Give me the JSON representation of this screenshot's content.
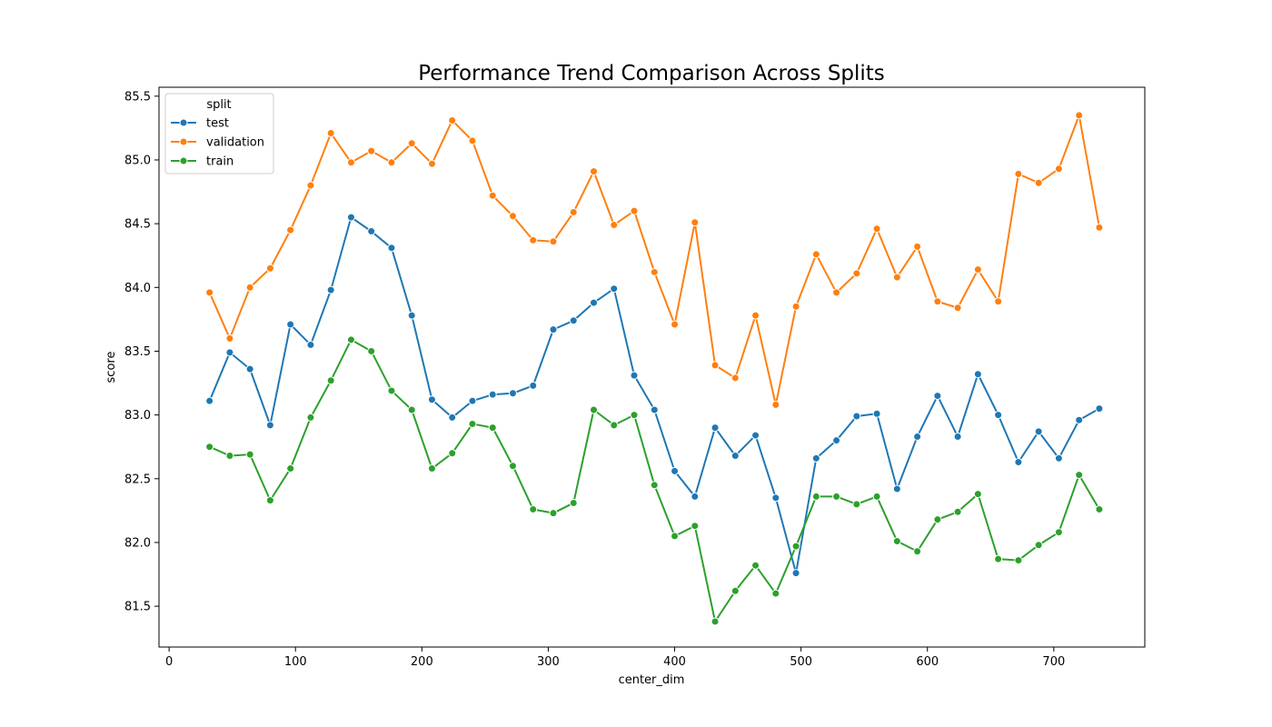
{
  "chart_data": {
    "type": "line",
    "title": "Performance Trend Comparison Across Splits",
    "xlabel": "center_dim",
    "ylabel": "score",
    "xlim": [
      -8,
      772
    ],
    "ylim": [
      81.18,
      85.57
    ],
    "xticks": [
      0,
      100,
      200,
      300,
      400,
      500,
      600,
      700
    ],
    "yticks": [
      81.5,
      82.0,
      82.5,
      83.0,
      83.5,
      84.0,
      84.5,
      85.0,
      85.5
    ],
    "grid": false,
    "legend_title": "split",
    "legend_position": "top-left",
    "x": [
      32,
      48,
      64,
      80,
      96,
      112,
      128,
      144,
      160,
      176,
      192,
      208,
      224,
      240,
      256,
      272,
      288,
      304,
      320,
      336,
      352,
      368,
      384,
      400,
      416,
      432,
      448,
      464,
      480,
      496,
      512,
      528,
      544,
      560,
      576,
      592,
      608,
      624,
      640,
      656,
      672,
      688,
      704,
      720,
      736
    ],
    "series": [
      {
        "name": "test",
        "color": "#1f77b4",
        "values": [
          83.11,
          83.49,
          83.36,
          82.92,
          83.71,
          83.55,
          83.98,
          84.55,
          84.44,
          84.31,
          83.78,
          83.12,
          82.98,
          83.11,
          83.16,
          83.17,
          83.23,
          83.67,
          83.74,
          83.88,
          83.99,
          83.31,
          83.04,
          82.56,
          82.36,
          82.9,
          82.68,
          82.84,
          82.35,
          81.76,
          82.66,
          82.8,
          82.99,
          83.01,
          82.42,
          82.83,
          83.15,
          82.83,
          83.32,
          83.0,
          82.63,
          82.87,
          82.66,
          82.96,
          83.05
        ]
      },
      {
        "name": "validation",
        "color": "#ff7f0e",
        "values": [
          83.96,
          83.6,
          84.0,
          84.15,
          84.45,
          84.8,
          85.21,
          84.98,
          85.07,
          84.98,
          85.13,
          84.97,
          85.31,
          85.15,
          84.72,
          84.56,
          84.37,
          84.36,
          84.59,
          84.91,
          84.49,
          84.6,
          84.12,
          83.71,
          84.51,
          83.39,
          83.29,
          83.78,
          83.08,
          83.85,
          84.26,
          83.96,
          84.11,
          84.46,
          84.08,
          84.32,
          83.89,
          83.84,
          84.14,
          83.89,
          84.89,
          84.82,
          84.93,
          85.35,
          84.47
        ]
      },
      {
        "name": "train",
        "color": "#2ca02c",
        "values": [
          82.75,
          82.68,
          82.69,
          82.33,
          82.58,
          82.98,
          83.27,
          83.59,
          83.5,
          83.19,
          83.04,
          82.58,
          82.7,
          82.93,
          82.9,
          82.6,
          82.26,
          82.23,
          82.31,
          83.04,
          82.92,
          83.0,
          82.45,
          82.05,
          82.13,
          81.38,
          81.62,
          81.82,
          81.6,
          81.97,
          82.36,
          82.36,
          82.3,
          82.36,
          82.01,
          81.93,
          82.18,
          82.24,
          82.38,
          81.87,
          81.86,
          81.98,
          82.08,
          82.53,
          82.26
        ]
      }
    ]
  }
}
